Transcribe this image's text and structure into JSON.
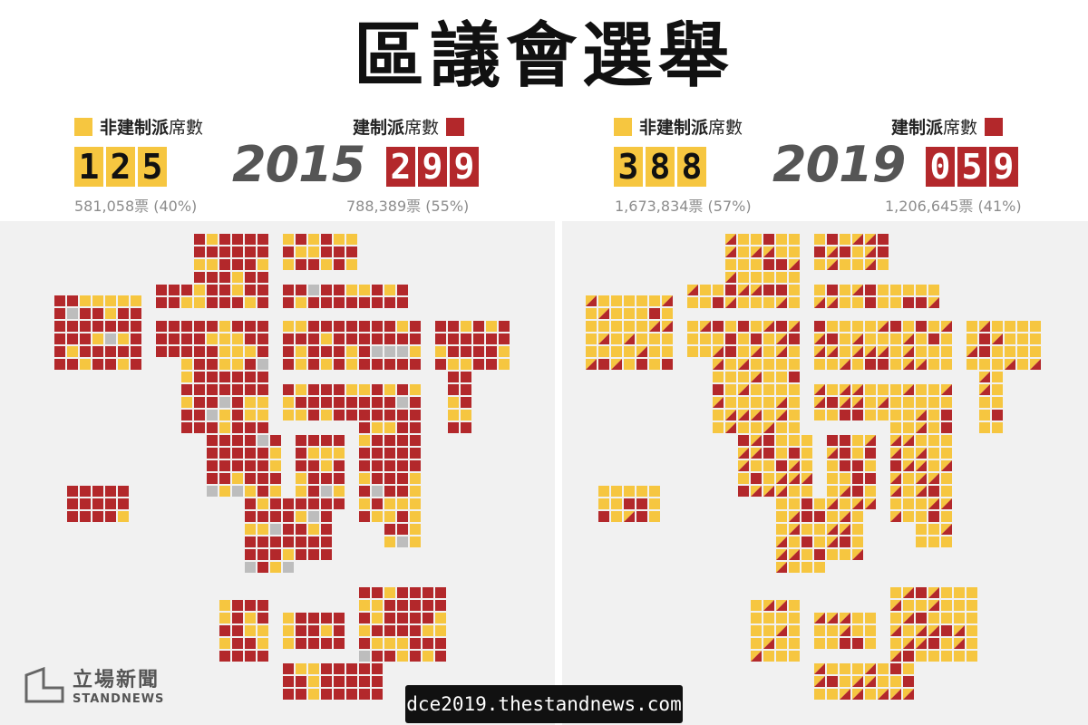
{
  "title": "區議會選舉",
  "colors": {
    "pro_democracy": "#f6c640",
    "pro_beijing": "#b3282b",
    "unfilled": "#bdbdbd",
    "dark": "#555555"
  },
  "elections": [
    {
      "year": "2015",
      "left_label_bold": "非建制派",
      "left_label_rest": "席數",
      "pro_democracy_seats_digits": [
        "1",
        "2",
        "5"
      ],
      "pro_democracy_votes": "581,058票 (40%)",
      "right_label_bold": "建制派",
      "right_label_rest": "席數",
      "pro_beijing_seats_digits": [
        "2",
        "9",
        "9"
      ],
      "pro_beijing_votes": "788,389票 (55%)"
    },
    {
      "year": "2019",
      "left_label_bold": "非建制派",
      "left_label_rest": "席數",
      "pro_democracy_seats_digits": [
        "3",
        "8",
        "8"
      ],
      "pro_democracy_votes": "1,673,834票 (57%)",
      "right_label_bold": "建制派",
      "right_label_rest": "席數",
      "pro_beijing_seats_digits": [
        "0",
        "5",
        "9"
      ],
      "pro_beijing_votes": "1,206,645票 (41%)"
    }
  ],
  "chart_data": [
    {
      "type": "waffle-map",
      "title": "2015",
      "series": [
        {
          "name": "非建制派",
          "value": 125
        },
        {
          "name": "建制派",
          "value": 299
        }
      ]
    },
    {
      "type": "waffle-map",
      "title": "2019",
      "series": [
        {
          "name": "非建制派",
          "value": 388
        },
        {
          "name": "建制派",
          "value": 59
        }
      ]
    }
  ],
  "logo": {
    "zh": "立場新聞",
    "en": "STANDNEWS"
  },
  "url": "dce2019.thestandnews.com"
}
